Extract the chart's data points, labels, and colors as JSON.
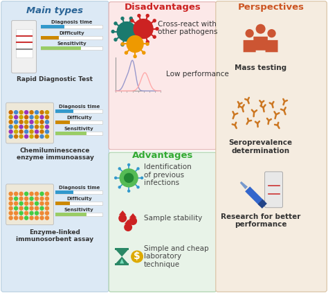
{
  "title_main": "Main types",
  "title_disadv": "Disadvantages",
  "title_persp": "Perspectives",
  "title_adv": "Advantages",
  "col1_bg": "#dce9f5",
  "col2_top_bg": "#fce8e8",
  "col2_bot_bg": "#e8f3e8",
  "col3_bg": "#f5ece0",
  "main_title_color": "#2a6496",
  "disadv_title_color": "#cc2222",
  "adv_title_color": "#33aa33",
  "persp_title_color": "#cc5522",
  "bar_blue": "#3399cc",
  "bar_orange": "#cc8800",
  "bar_green": "#99cc66",
  "test1_label": "Rapid Diagnostic Test",
  "test2_label": "Chemiluminescence\nenzyme immunoassay",
  "test3_label": "Enzyme-linked\nimmunosorbent assay",
  "disadv_items": [
    "Cross-react with\nother pathogens",
    "Low performance"
  ],
  "adv_items": [
    "Identification\nof previous\ninfections",
    "Sample stability",
    "Simple and cheap\nlaboratory\ntechnique"
  ],
  "persp_items": [
    "Mass testing",
    "Seroprevalence\ndetermination",
    "Research for better\nperformance"
  ],
  "bar_label1": "Diagnosis time",
  "bar_label2": "Difficulty",
  "bar_label3": "Sensitivity",
  "virus1_color": "#1a7a6e",
  "virus2_color": "#cc2222",
  "virus3_color": "#ee9900",
  "cell_color": "#55bb55",
  "cell_inner": "#33aa33",
  "cell_spike": "#3399cc",
  "drop_color": "#cc2222",
  "hourglass_color": "#2a8866",
  "dollar_color": "#ddaa00",
  "person_color": "#cc5533",
  "antibody_color": "#cc7722",
  "pipette_color": "#3366cc"
}
